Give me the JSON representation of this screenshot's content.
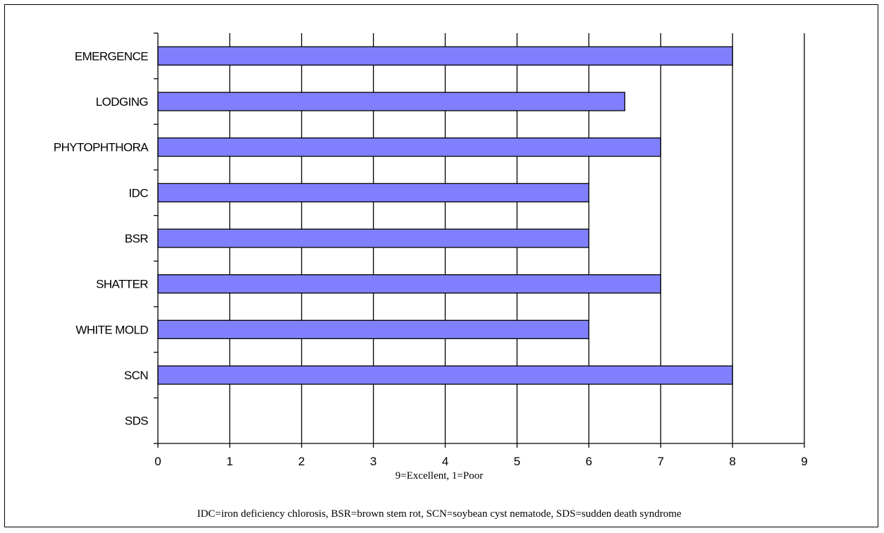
{
  "chart_data": {
    "type": "bar",
    "orientation": "horizontal",
    "categories": [
      "EMERGENCE",
      "LODGING",
      "PHYTOPHTHORA",
      "IDC",
      "BSR",
      "SHATTER",
      "WHITE MOLD",
      "SCN",
      "SDS"
    ],
    "values": [
      8,
      6.5,
      7,
      6,
      6,
      7,
      6,
      8,
      null
    ],
    "xlim": [
      0,
      9
    ],
    "x_ticks": [
      0,
      1,
      2,
      3,
      4,
      5,
      6,
      7,
      8,
      9
    ],
    "xlabel": "9=Excellent, 1=Poor",
    "footnote": "IDC=iron deficiency chlorosis, BSR=brown stem rot, SCN=soybean cyst nematode, SDS=sudden death syndrome",
    "grid": "vertical",
    "bar_color": "#8080ff"
  }
}
